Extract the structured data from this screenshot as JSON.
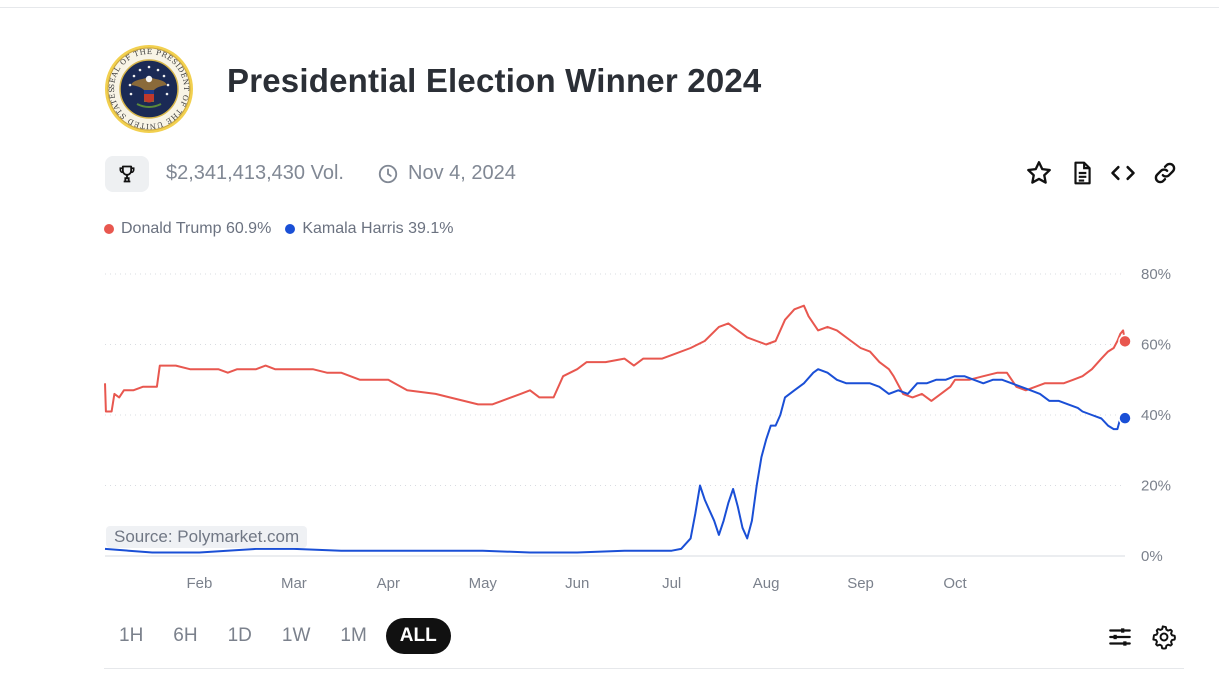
{
  "page": {
    "title": "Presidential Election Winner 2024",
    "seal_alt": "Seal of the President of the United States",
    "seal_text": "SEAL OF THE PRESIDENT OF THE UNITED STATES",
    "volume": "$2,341,413,430 Vol.",
    "end_date": "Nov 4, 2024"
  },
  "icons": {
    "trophy": "trophy-icon",
    "clock": "clock-icon",
    "star": "star-icon",
    "document": "document-icon",
    "embed": "code-icon",
    "link": "link-icon",
    "filters": "sliders-icon",
    "settings": "gear-icon"
  },
  "legend": [
    {
      "label": "Donald Trump 60.9%",
      "color": "#e8574f"
    },
    {
      "label": "Kamala Harris 39.1%",
      "color": "#1a4fd6"
    }
  ],
  "source": "Source: Polymarket.com",
  "ranges": [
    "1H",
    "6H",
    "1D",
    "1W",
    "1M",
    "ALL"
  ],
  "active_range": "ALL",
  "chart_data": {
    "type": "line",
    "title": "Presidential Election Winner 2024",
    "xlabel": "",
    "ylabel": "",
    "ylim": [
      0,
      80
    ],
    "xlim": [
      1,
      11.8
    ],
    "x_ticks": [
      {
        "pos": 2,
        "label": "Feb"
      },
      {
        "pos": 3,
        "label": "Mar"
      },
      {
        "pos": 4,
        "label": "Apr"
      },
      {
        "pos": 5,
        "label": "May"
      },
      {
        "pos": 6,
        "label": "Jun"
      },
      {
        "pos": 7,
        "label": "Jul"
      },
      {
        "pos": 8,
        "label": "Aug"
      },
      {
        "pos": 9,
        "label": "Sep"
      },
      {
        "pos": 10,
        "label": "Oct"
      }
    ],
    "y_ticks": [
      {
        "value": 0,
        "label": "0%"
      },
      {
        "value": 20,
        "label": "20%"
      },
      {
        "value": 40,
        "label": "40%"
      },
      {
        "value": 60,
        "label": "60%"
      },
      {
        "value": 80,
        "label": "80%"
      }
    ],
    "grid": true,
    "series": [
      {
        "name": "Donald Trump",
        "color": "#e8574f",
        "last_value": 60.9,
        "points": [
          [
            1.0,
            49
          ],
          [
            1.01,
            41
          ],
          [
            1.07,
            41
          ],
          [
            1.1,
            46
          ],
          [
            1.15,
            45
          ],
          [
            1.2,
            47
          ],
          [
            1.3,
            47
          ],
          [
            1.4,
            48
          ],
          [
            1.55,
            48
          ],
          [
            1.58,
            54
          ],
          [
            1.75,
            54
          ],
          [
            1.9,
            53
          ],
          [
            2.0,
            53
          ],
          [
            2.2,
            53
          ],
          [
            2.3,
            52
          ],
          [
            2.4,
            53
          ],
          [
            2.6,
            53
          ],
          [
            2.7,
            54
          ],
          [
            2.8,
            53
          ],
          [
            2.9,
            53
          ],
          [
            3.2,
            53
          ],
          [
            3.35,
            52
          ],
          [
            3.5,
            52
          ],
          [
            3.7,
            50
          ],
          [
            4.0,
            50
          ],
          [
            4.2,
            47
          ],
          [
            4.5,
            46
          ],
          [
            4.65,
            45
          ],
          [
            4.8,
            44
          ],
          [
            4.95,
            43
          ],
          [
            5.1,
            43
          ],
          [
            5.2,
            44
          ],
          [
            5.4,
            46
          ],
          [
            5.5,
            47
          ],
          [
            5.6,
            45
          ],
          [
            5.75,
            45
          ],
          [
            5.85,
            51
          ],
          [
            6.0,
            53
          ],
          [
            6.1,
            55
          ],
          [
            6.3,
            55
          ],
          [
            6.5,
            56
          ],
          [
            6.6,
            54
          ],
          [
            6.7,
            56
          ],
          [
            6.9,
            56
          ],
          [
            7.0,
            57
          ],
          [
            7.2,
            59
          ],
          [
            7.35,
            61
          ],
          [
            7.5,
            65
          ],
          [
            7.6,
            66
          ],
          [
            7.7,
            64
          ],
          [
            7.8,
            62
          ],
          [
            7.9,
            61
          ],
          [
            8.0,
            60
          ],
          [
            8.1,
            61
          ],
          [
            8.2,
            67
          ],
          [
            8.3,
            70
          ],
          [
            8.4,
            71
          ],
          [
            8.45,
            68
          ],
          [
            8.55,
            64
          ],
          [
            8.65,
            65
          ],
          [
            8.75,
            64
          ],
          [
            8.9,
            61
          ],
          [
            9.0,
            59
          ],
          [
            9.1,
            58
          ],
          [
            9.2,
            55
          ],
          [
            9.3,
            53
          ],
          [
            9.35,
            51
          ],
          [
            9.45,
            46
          ],
          [
            9.55,
            45
          ],
          [
            9.65,
            46
          ],
          [
            9.75,
            44
          ],
          [
            9.85,
            46
          ],
          [
            9.95,
            48
          ],
          [
            10.0,
            50
          ],
          [
            10.15,
            50
          ],
          [
            10.3,
            51
          ],
          [
            10.45,
            52
          ],
          [
            10.55,
            52
          ],
          [
            10.65,
            48
          ],
          [
            10.75,
            47
          ],
          [
            10.85,
            48
          ],
          [
            10.95,
            49
          ],
          [
            11.05,
            49
          ],
          [
            11.15,
            49
          ],
          [
            11.25,
            50
          ],
          [
            11.35,
            51
          ],
          [
            11.45,
            53
          ],
          [
            11.55,
            56
          ],
          [
            11.62,
            58
          ],
          [
            11.68,
            59
          ],
          [
            11.72,
            61
          ],
          [
            11.75,
            63
          ],
          [
            11.78,
            64
          ],
          [
            11.8,
            60.9
          ]
        ]
      },
      {
        "name": "Kamala Harris",
        "color": "#1a4fd6",
        "last_value": 39.1,
        "points": [
          [
            1.0,
            2
          ],
          [
            1.5,
            1
          ],
          [
            2.0,
            1
          ],
          [
            2.6,
            2
          ],
          [
            3.0,
            2
          ],
          [
            3.5,
            1.5
          ],
          [
            4.0,
            1.5
          ],
          [
            5.0,
            1.5
          ],
          [
            5.5,
            1
          ],
          [
            6.0,
            1
          ],
          [
            6.5,
            1.5
          ],
          [
            7.0,
            1.5
          ],
          [
            7.1,
            2
          ],
          [
            7.2,
            5
          ],
          [
            7.25,
            12
          ],
          [
            7.3,
            20
          ],
          [
            7.35,
            16
          ],
          [
            7.4,
            13
          ],
          [
            7.45,
            10
          ],
          [
            7.5,
            6
          ],
          [
            7.55,
            10
          ],
          [
            7.6,
            15
          ],
          [
            7.65,
            19
          ],
          [
            7.7,
            14
          ],
          [
            7.75,
            8
          ],
          [
            7.8,
            5
          ],
          [
            7.85,
            10
          ],
          [
            7.9,
            20
          ],
          [
            7.95,
            28
          ],
          [
            8.0,
            33
          ],
          [
            8.05,
            37
          ],
          [
            8.1,
            37
          ],
          [
            8.15,
            40
          ],
          [
            8.2,
            45
          ],
          [
            8.3,
            47
          ],
          [
            8.4,
            49
          ],
          [
            8.5,
            52
          ],
          [
            8.55,
            53
          ],
          [
            8.65,
            52
          ],
          [
            8.75,
            50
          ],
          [
            8.85,
            49
          ],
          [
            9.0,
            49
          ],
          [
            9.1,
            49
          ],
          [
            9.2,
            48
          ],
          [
            9.3,
            46
          ],
          [
            9.4,
            47
          ],
          [
            9.5,
            46
          ],
          [
            9.6,
            49
          ],
          [
            9.7,
            49
          ],
          [
            9.8,
            50
          ],
          [
            9.9,
            50
          ],
          [
            10.0,
            51
          ],
          [
            10.1,
            51
          ],
          [
            10.2,
            50
          ],
          [
            10.3,
            49
          ],
          [
            10.4,
            50
          ],
          [
            10.5,
            50
          ],
          [
            10.6,
            49
          ],
          [
            10.7,
            48
          ],
          [
            10.8,
            47
          ],
          [
            10.9,
            46
          ],
          [
            11.0,
            44
          ],
          [
            11.1,
            44
          ],
          [
            11.2,
            43
          ],
          [
            11.3,
            42
          ],
          [
            11.35,
            41
          ],
          [
            11.45,
            40
          ],
          [
            11.55,
            39
          ],
          [
            11.62,
            37
          ],
          [
            11.68,
            36
          ],
          [
            11.72,
            36
          ],
          [
            11.75,
            39
          ],
          [
            11.8,
            39.1
          ]
        ]
      }
    ]
  }
}
